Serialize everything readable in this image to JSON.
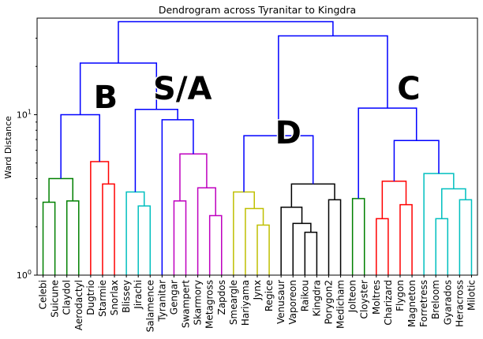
{
  "chart_data": {
    "type": "dendrogram",
    "title": "Dendrogram across Tyranitar to Kingdra",
    "ylabel": "Ward Distance",
    "xlabel": "",
    "yscale": "log",
    "ylim": [
      1,
      40
    ],
    "yticks": [
      {
        "value": 1,
        "label": "10^0"
      },
      {
        "value": 10,
        "label": "10^1"
      }
    ],
    "leaves": [
      "Celebi",
      "Suicune",
      "Claydol",
      "Aerodactyl",
      "Dugtrio",
      "Starmie",
      "Snorlax",
      "Blissey",
      "Jirachi",
      "Salamence",
      "Tyranitar",
      "Gengar",
      "Swampert",
      "Skarmory",
      "Metagross",
      "Zapdos",
      "Smeargle",
      "Hariyama",
      "Jynx",
      "Regice",
      "Venusaur",
      "Vaporeon",
      "Raikou",
      "Kingdra",
      "Porygon2",
      "Medicham",
      "Jolteon",
      "Cloyster",
      "Moltres",
      "Charizard",
      "Flygon",
      "Magneton",
      "Forretress",
      "Breloom",
      "Gyarados",
      "Heracross",
      "Milotic"
    ],
    "colors": {
      "green": "#008000",
      "red": "#ff0000",
      "cyan": "#00bfbf",
      "magenta": "#bf00bf",
      "yellow": "#bfbf00",
      "black": "#000000",
      "blue": "#0000ff"
    },
    "merges": [
      {
        "l": 0,
        "r": 1,
        "h": 2.85,
        "c": "green"
      },
      {
        "l": 2,
        "r": 3,
        "h": 2.9,
        "c": "green"
      },
      {
        "l": 0.5,
        "r": 2.5,
        "h": 4.0,
        "c": "green"
      },
      {
        "l": 5,
        "r": 6,
        "h": 3.7,
        "c": "red"
      },
      {
        "l": 4,
        "r": 5.5,
        "h": 5.1,
        "c": "red"
      },
      {
        "l": 1.5,
        "r": 4.75,
        "h": 10.0,
        "c": "blue"
      },
      {
        "l": 8,
        "r": 9,
        "h": 2.7,
        "c": "cyan"
      },
      {
        "l": 7,
        "r": 8.5,
        "h": 3.3,
        "c": "cyan"
      },
      {
        "l": 11,
        "r": 12,
        "h": 2.9,
        "c": "magenta"
      },
      {
        "l": 14,
        "r": 15,
        "h": 2.35,
        "c": "magenta"
      },
      {
        "l": 13,
        "r": 14.5,
        "h": 3.5,
        "c": "magenta"
      },
      {
        "l": 11.5,
        "r": 13.75,
        "h": 5.7,
        "c": "magenta"
      },
      {
        "l": 10,
        "r": 12.625,
        "h": 9.3,
        "c": "blue"
      },
      {
        "l": 7.75,
        "r": 11.3125,
        "h": 10.8,
        "c": "blue"
      },
      {
        "l": 3.125,
        "r": 9.53125,
        "h": 21.0,
        "c": "blue"
      },
      {
        "l": 18,
        "r": 19,
        "h": 2.05,
        "c": "yellow"
      },
      {
        "l": 17,
        "r": 18.5,
        "h": 2.6,
        "c": "yellow"
      },
      {
        "l": 16,
        "r": 17.75,
        "h": 3.3,
        "c": "yellow"
      },
      {
        "l": 22,
        "r": 23,
        "h": 1.85,
        "c": "black"
      },
      {
        "l": 21,
        "r": 22.5,
        "h": 2.1,
        "c": "black"
      },
      {
        "l": 20,
        "r": 21.75,
        "h": 2.65,
        "c": "black"
      },
      {
        "l": 24,
        "r": 25,
        "h": 2.95,
        "c": "black"
      },
      {
        "l": 20.875,
        "r": 24.5,
        "h": 3.7,
        "c": "black"
      },
      {
        "l": 16.875,
        "r": 22.6875,
        "h": 7.4,
        "c": "blue"
      },
      {
        "l": 26,
        "r": 27,
        "h": 3.0,
        "c": "green"
      },
      {
        "l": 28,
        "r": 29,
        "h": 2.25,
        "c": "red"
      },
      {
        "l": 30,
        "r": 31,
        "h": 2.75,
        "c": "red"
      },
      {
        "l": 28.5,
        "r": 30.5,
        "h": 3.85,
        "c": "red"
      },
      {
        "l": 33,
        "r": 34,
        "h": 2.25,
        "c": "cyan"
      },
      {
        "l": 35,
        "r": 36,
        "h": 2.95,
        "c": "cyan"
      },
      {
        "l": 33.5,
        "r": 35.5,
        "h": 3.45,
        "c": "cyan"
      },
      {
        "l": 32,
        "r": 34.5,
        "h": 4.3,
        "c": "cyan"
      },
      {
        "l": 29.5,
        "r": 33.25,
        "h": 6.9,
        "c": "blue"
      },
      {
        "l": 26.5,
        "r": 31.375,
        "h": 11.0,
        "c": "blue"
      },
      {
        "l": 19.78125,
        "r": 28.9375,
        "h": 31.0,
        "c": "blue"
      },
      {
        "l": 6.328125,
        "r": 24.359375,
        "h": 38.0,
        "c": "blue"
      }
    ],
    "annotations": [
      {
        "text": "B",
        "x": 4.25,
        "y": 11.0
      },
      {
        "text": "S/A",
        "x": 9.25,
        "y": 12.5
      },
      {
        "text": "D",
        "x": 19.5,
        "y": 6.6
      },
      {
        "text": "C",
        "x": 29.75,
        "y": 12.5
      }
    ]
  }
}
